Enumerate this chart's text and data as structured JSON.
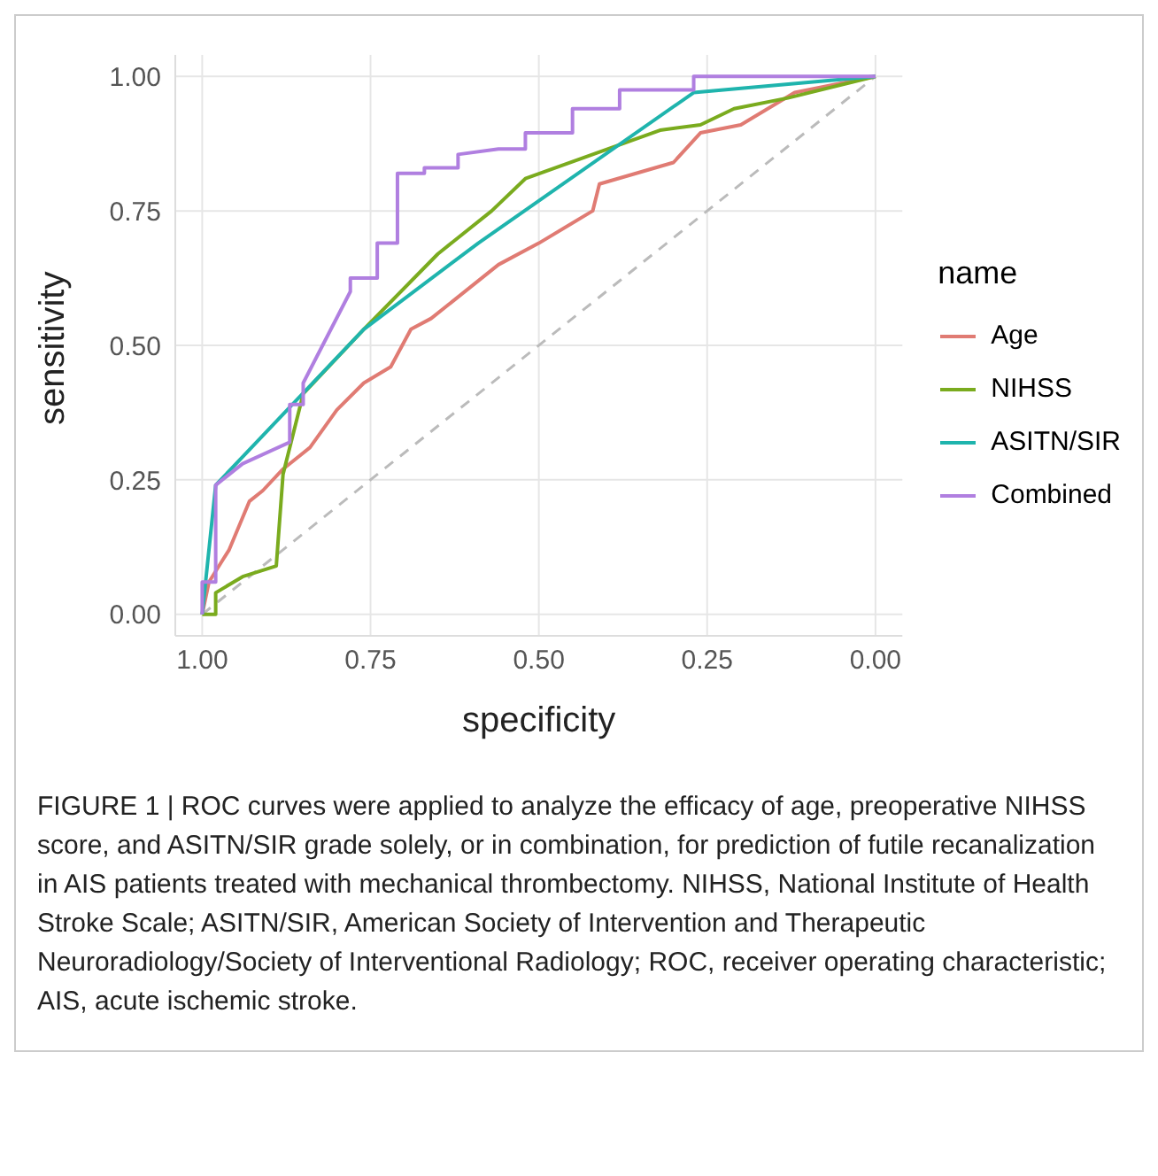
{
  "chart_data": {
    "type": "line",
    "xlabel": "specificity",
    "ylabel": "sensitivity",
    "legend_title": "name",
    "legend": "right",
    "grid": true,
    "marker": "none",
    "xlim": [
      1.04,
      -0.04
    ],
    "xticks": [
      {
        "value": 1,
        "label": "1.00"
      },
      {
        "value": 0.75,
        "label": "0.75"
      },
      {
        "value": 0.5,
        "label": "0.50"
      },
      {
        "value": 0.25,
        "label": "0.25"
      },
      {
        "value": 0,
        "label": "0.00"
      }
    ],
    "ylim": [
      -0.04,
      1.04
    ],
    "yticks": [
      {
        "value": 0,
        "label": "0.00"
      },
      {
        "value": 0.25,
        "label": "0.25"
      },
      {
        "value": 0.5,
        "label": "0.50"
      },
      {
        "value": 0.75,
        "label": "0.75"
      },
      {
        "value": 1,
        "label": "1.00"
      }
    ],
    "series": [
      {
        "color": "#bbbbbb",
        "line_style": "dashed",
        "x": [
          1,
          0
        ],
        "values": [
          0,
          1
        ]
      },
      {
        "name": "Age",
        "color": "#e07b73",
        "x": [
          1,
          0.99,
          0.96,
          0.93,
          0.91,
          0.88,
          0.84,
          0.8,
          0.76,
          0.72,
          0.69,
          0.66,
          0.62,
          0.56,
          0.5,
          0.42,
          0.41,
          0.3,
          0.26,
          0.2,
          0.12,
          0
        ],
        "values": [
          0,
          0.06,
          0.12,
          0.21,
          0.23,
          0.27,
          0.31,
          0.38,
          0.43,
          0.46,
          0.53,
          0.55,
          0.59,
          0.65,
          0.69,
          0.75,
          0.8,
          0.84,
          0.895,
          0.91,
          0.97,
          1
        ]
      },
      {
        "name": "NIHSS",
        "color": "#7aab1e",
        "x": [
          1,
          0.98,
          0.98,
          0.94,
          0.89,
          0.88,
          0.87,
          0.85,
          0.76,
          0.65,
          0.57,
          0.52,
          0.32,
          0.26,
          0.21,
          0.13,
          0
        ],
        "values": [
          0,
          0,
          0.04,
          0.07,
          0.09,
          0.26,
          0.31,
          0.41,
          0.53,
          0.67,
          0.75,
          0.81,
          0.9,
          0.91,
          0.94,
          0.96,
          1
        ]
      },
      {
        "name": "ASITN/SIR",
        "color": "#1fb4ad",
        "x": [
          1,
          0.98,
          0.76,
          0.59,
          0.27,
          0
        ],
        "values": [
          0,
          0.24,
          0.53,
          0.69,
          0.97,
          1
        ]
      },
      {
        "name": "Combined",
        "color": "#b07fe0",
        "x": [
          1,
          1,
          0.98,
          0.98,
          0.94,
          0.87,
          0.87,
          0.85,
          0.85,
          0.78,
          0.78,
          0.74,
          0.74,
          0.71,
          0.71,
          0.67,
          0.67,
          0.62,
          0.62,
          0.56,
          0.52,
          0.52,
          0.45,
          0.45,
          0.38,
          0.38,
          0.27,
          0.27,
          0
        ],
        "values": [
          0,
          0.06,
          0.06,
          0.24,
          0.28,
          0.32,
          0.39,
          0.39,
          0.43,
          0.6,
          0.625,
          0.625,
          0.69,
          0.69,
          0.82,
          0.82,
          0.83,
          0.83,
          0.855,
          0.865,
          0.865,
          0.895,
          0.895,
          0.94,
          0.94,
          0.975,
          0.975,
          1.0,
          1.0
        ]
      }
    ],
    "annotations": [
      "FIGURE 1 | ROC curves were applied to analyze the efficacy of age, preoperative NIHSS score, and ASITN/SIR grade solely, or in combination, for prediction of futile recanalization in AIS patients treated with mechanical thrombectomy. NIHSS, National Institute of Health Stroke Scale; ASITN/SIR, American Society of Intervention and Therapeutic Neuroradiology/Society of Interventional Radiology; ROC, receiver operating characteristic; AIS, acute ischemic stroke."
    ]
  }
}
